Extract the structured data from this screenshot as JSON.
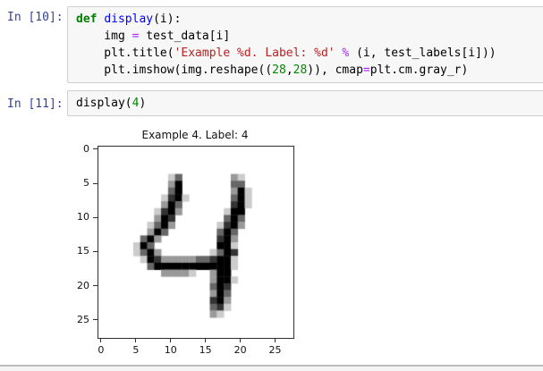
{
  "cells": [
    {
      "prompt": "In [10]:",
      "lines": [
        [
          {
            "t": "def",
            "c": "kw"
          },
          {
            "t": " ",
            "c": "pl"
          },
          {
            "t": "display",
            "c": "fn"
          },
          {
            "t": "(i):",
            "c": "pl"
          }
        ],
        [
          {
            "t": "    img ",
            "c": "pl"
          },
          {
            "t": "=",
            "c": "op"
          },
          {
            "t": " test_data[i]",
            "c": "pl"
          }
        ],
        [
          {
            "t": "    plt.title(",
            "c": "pl"
          },
          {
            "t": "'Example %d. Label: %d'",
            "c": "str"
          },
          {
            "t": " ",
            "c": "pl"
          },
          {
            "t": "%",
            "c": "op"
          },
          {
            "t": " (i, test_labels[i]))",
            "c": "pl"
          }
        ],
        [
          {
            "t": "    plt.imshow(img.reshape((",
            "c": "pl"
          },
          {
            "t": "28",
            "c": "num"
          },
          {
            "t": ",",
            "c": "pl"
          },
          {
            "t": "28",
            "c": "num"
          },
          {
            "t": ")), cmap",
            "c": "pl"
          },
          {
            "t": "=",
            "c": "op"
          },
          {
            "t": "plt.cm.gray_r)",
            "c": "pl"
          }
        ]
      ]
    },
    {
      "prompt": "In [11]:",
      "lines": [
        [
          {
            "t": "display(",
            "c": "pl"
          },
          {
            "t": "4",
            "c": "num"
          },
          {
            "t": ")",
            "c": "pl"
          }
        ]
      ]
    }
  ],
  "chart_data": {
    "type": "heatmap",
    "title": "Example 4. Label: 4",
    "colormap": "gray_r",
    "grid_size": 28,
    "x_ticks": [
      0,
      5,
      10,
      15,
      20,
      25
    ],
    "y_ticks": [
      0,
      5,
      10,
      15,
      20,
      25
    ],
    "x_range": [
      0,
      28
    ],
    "y_range": [
      0,
      28
    ],
    "rows": [
      "0000000000000000000000000000",
      "0000000000000000000000000000",
      "0000000000000000000000000000",
      "0000000000000000000000000000",
      "0000000000390000000630000000",
      "00000000006f0000000990000000",
      "00000000009f00000006f3000000",
      "0000000003cf30000009f3000000",
      "0000000006f90000000cf3000000",
      "000000003cf60000003ff0000000",
      "000000006fc00000009f90000000",
      "000000039f60000003cf60000000",
      "00000006f900000009f900000000",
      "0000009f600000000cf600000000",
      "000003f9000000000ff300000000",
      "0000039f6000000039fc00000000",
      "0000003fc6666699cff300000000",
      "00000009fffffffffff300000000",
      "00000000066663006ff000000000",
      "00000000000000006ff300000000",
      "00000000000000009fc000000000",
      "00000000000000006f9000000000",
      "0000000000000000cf6000000000",
      "00000000000000009c3000000000",
      "0000000000000000630000000000",
      "0000000000000000000000000000",
      "0000000000000000000000000000",
      "0000000000000000000000000000"
    ]
  },
  "colors": {
    "prompt_blue": "#303F9F",
    "keyword_green": "#008000",
    "function_blue": "#0000FF",
    "operator_purple": "#AA22FF",
    "string_red": "#BA2121",
    "number_green": "#008800",
    "cell_background": "#f7f7f7",
    "cell_border": "#cfcfcf",
    "axis_color": "#2f2f2f"
  }
}
